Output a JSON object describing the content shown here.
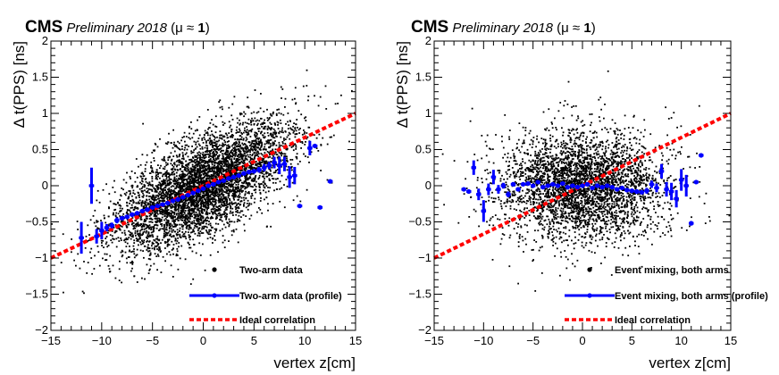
{
  "header": {
    "experiment": "CMS",
    "status": "Preliminary 2018",
    "condition_open": "(",
    "condition_mu": "μ ≈ ",
    "condition_value": "1",
    "condition_close": ")"
  },
  "colors": {
    "data": "#000000",
    "profile": "#0000ff",
    "ideal": "#ff0000"
  },
  "chart_data": [
    {
      "type": "scatter",
      "xlabel": "vertex z[cm]",
      "ylabel": "Δ t(PPS) [ns]",
      "xlim": [
        -15,
        15
      ],
      "ylim": [
        -2,
        2
      ],
      "xticks": [
        "−15",
        "−10",
        "−5",
        "0",
        "5",
        "10",
        "15"
      ],
      "yticks": [
        "−2",
        "−1.5",
        "−1",
        "−0.5",
        "0",
        "0.5",
        "1",
        "1.5",
        "2"
      ],
      "legend_position": "bottom-right",
      "scatter_cloud": {
        "slope": 0.0667,
        "x_sigma": 4.3,
        "y_sigma": 0.3,
        "n_points": 5000
      },
      "series": [
        {
          "name": "Two-arm data",
          "style": "points"
        },
        {
          "name": "Two-arm data (profile)",
          "style": "profile",
          "x": [
            -12,
            -11,
            -10.5,
            -10,
            -9.5,
            -9,
            -8.5,
            -8,
            -7.5,
            -7,
            -6.5,
            -6,
            -5.5,
            -5,
            -4.5,
            -4,
            -3.5,
            -3,
            -2.5,
            -2,
            -1.5,
            -1,
            -0.5,
            0,
            0.5,
            1,
            1.5,
            2,
            2.5,
            3,
            3.5,
            4,
            4.5,
            5,
            5.5,
            6,
            6.5,
            7,
            7.5,
            8,
            8.5,
            9,
            9.5,
            10.5,
            11,
            11.5,
            12.5
          ],
          "y": [
            -0.72,
            0.0,
            -0.7,
            -0.62,
            -0.58,
            -0.55,
            -0.48,
            -0.45,
            -0.43,
            -0.4,
            -0.38,
            -0.35,
            -0.33,
            -0.3,
            -0.28,
            -0.26,
            -0.24,
            -0.21,
            -0.19,
            -0.16,
            -0.13,
            -0.1,
            -0.07,
            -0.04,
            0.0,
            0.02,
            0.05,
            0.07,
            0.1,
            0.12,
            0.14,
            0.17,
            0.19,
            0.2,
            0.22,
            0.25,
            0.28,
            0.32,
            0.28,
            0.3,
            0.12,
            0.14,
            -0.28,
            0.52,
            0.55,
            -0.3,
            0.06
          ],
          "err": [
            0.22,
            0.25,
            0.1,
            0.12,
            0.05,
            0.04,
            0.04,
            0.03,
            0.03,
            0.03,
            0.02,
            0.02,
            0.02,
            0.02,
            0.02,
            0.02,
            0.02,
            0.02,
            0.02,
            0.02,
            0.02,
            0.02,
            0.02,
            0.02,
            0.02,
            0.02,
            0.02,
            0.02,
            0.02,
            0.02,
            0.02,
            0.03,
            0.03,
            0.03,
            0.04,
            0.05,
            0.05,
            0.08,
            0.12,
            0.1,
            0.15,
            0.12,
            0.02,
            0.1,
            0.02,
            0.02,
            0.02
          ]
        },
        {
          "name": "Ideal correlation",
          "style": "dashed-line",
          "x": [
            -15,
            15
          ],
          "y": [
            -1,
            1
          ]
        }
      ]
    },
    {
      "type": "scatter",
      "xlabel": "vertex z[cm]",
      "ylabel": "Δ t(PPS) [ns]",
      "xlim": [
        -15,
        15
      ],
      "ylim": [
        -2,
        2
      ],
      "xticks": [
        "−15",
        "−10",
        "−5",
        "0",
        "5",
        "10",
        "15"
      ],
      "yticks": [
        "−2",
        "−1.5",
        "−1",
        "−0.5",
        "0",
        "0.5",
        "1",
        "1.5",
        "2"
      ],
      "legend_position": "bottom-right",
      "scatter_cloud": {
        "slope": 0.0,
        "x_sigma": 4.2,
        "y_sigma": 0.34,
        "n_points": 3600
      },
      "series": [
        {
          "name": "Event mixing, both arms",
          "style": "points"
        },
        {
          "name": "Event mixing, both arms (profile)",
          "style": "profile",
          "x": [
            -12,
            -11.5,
            -11,
            -10.5,
            -10,
            -9.5,
            -9,
            -8.5,
            -8,
            -7.5,
            -7,
            -6.5,
            -6,
            -5.5,
            -5,
            -4.5,
            -4,
            -3.5,
            -3,
            -2.5,
            -2,
            -1.5,
            -1,
            -0.5,
            0,
            0.5,
            1,
            1.5,
            2,
            2.5,
            3,
            3.5,
            4,
            4.5,
            5,
            5.5,
            6,
            6.5,
            7,
            7.5,
            8,
            8.5,
            9,
            9.5,
            10,
            10.5,
            11,
            11.5,
            12
          ],
          "y": [
            -0.05,
            -0.08,
            0.25,
            -0.12,
            -0.35,
            -0.05,
            0.12,
            -0.05,
            0.0,
            -0.12,
            0.02,
            -0.05,
            0.02,
            0.03,
            0.0,
            0.05,
            -0.02,
            0.0,
            0.02,
            0.0,
            0.03,
            -0.02,
            0.0,
            -0.02,
            0.0,
            0.02,
            -0.03,
            0.0,
            -0.02,
            0.0,
            -0.02,
            -0.05,
            -0.03,
            -0.06,
            -0.07,
            -0.08,
            -0.09,
            -0.07,
            0.02,
            -0.03,
            0.2,
            -0.05,
            -0.08,
            -0.18,
            0.08,
            0.0,
            -0.52,
            0.05,
            0.42
          ],
          "err": [
            0.02,
            0.02,
            0.1,
            0.08,
            0.15,
            0.08,
            0.1,
            0.06,
            0.04,
            0.04,
            0.03,
            0.03,
            0.02,
            0.02,
            0.02,
            0.02,
            0.02,
            0.02,
            0.02,
            0.02,
            0.02,
            0.02,
            0.02,
            0.02,
            0.02,
            0.02,
            0.02,
            0.02,
            0.02,
            0.02,
            0.02,
            0.02,
            0.02,
            0.02,
            0.03,
            0.03,
            0.03,
            0.04,
            0.05,
            0.06,
            0.1,
            0.1,
            0.12,
            0.12,
            0.15,
            0.15,
            0.03,
            0.02,
            0.02
          ]
        },
        {
          "name": "Ideal correlation",
          "style": "dashed-line",
          "x": [
            -15,
            15
          ],
          "y": [
            -1,
            1
          ]
        }
      ]
    }
  ]
}
